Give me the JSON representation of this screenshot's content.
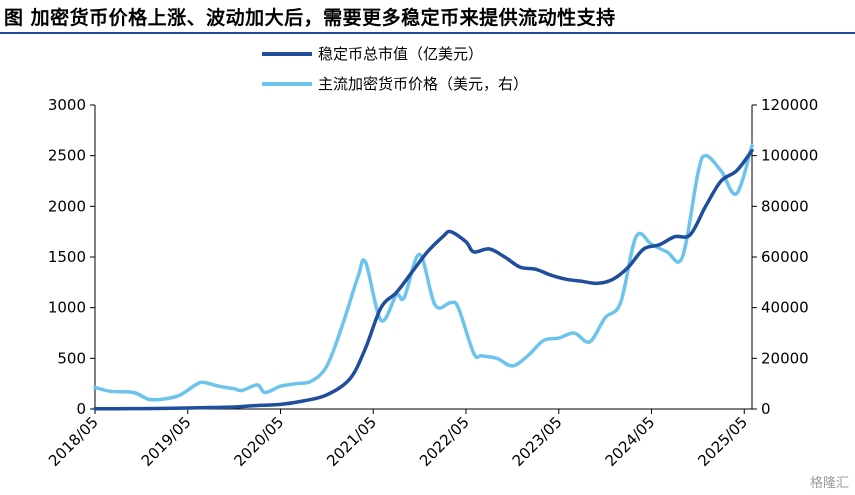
{
  "title": "图  加密货币价格上涨、波动加大后，需要更多稳定币来提供流动性支持",
  "watermark": "格隆汇",
  "chart_data": {
    "type": "line",
    "x_ticks": [
      "2018/05",
      "2019/05",
      "2020/05",
      "2021/05",
      "2022/05",
      "2023/05",
      "2024/05",
      "2025/05"
    ],
    "x_range": [
      "2018/05",
      "2025/06"
    ],
    "y_left": {
      "ticks": [
        0,
        500,
        1000,
        1500,
        2000,
        2500,
        3000
      ],
      "ylim": [
        0,
        3000
      ]
    },
    "y_right": {
      "ticks": [
        0,
        20000,
        40000,
        60000,
        80000,
        100000,
        120000
      ],
      "ylim": [
        0,
        120000
      ]
    },
    "grid": false,
    "legend_position": "top-center",
    "series": [
      {
        "name": "稳定币总市值（亿美元）",
        "axis": "left",
        "color": "#1f4e9c",
        "points": [
          [
            "2018/05",
            3
          ],
          [
            "2018/08",
            3
          ],
          [
            "2018/11",
            4
          ],
          [
            "2019/02",
            6
          ],
          [
            "2019/05",
            10
          ],
          [
            "2019/08",
            15
          ],
          [
            "2019/11",
            20
          ],
          [
            "2020/02",
            35
          ],
          [
            "2020/05",
            45
          ],
          [
            "2020/08",
            80
          ],
          [
            "2020/11",
            140
          ],
          [
            "2021/02",
            300
          ],
          [
            "2021/04",
            600
          ],
          [
            "2021/06",
            1000
          ],
          [
            "2021/08",
            1150
          ],
          [
            "2021/10",
            1350
          ],
          [
            "2021/12",
            1550
          ],
          [
            "2022/02",
            1700
          ],
          [
            "2022/03",
            1750
          ],
          [
            "2022/05",
            1650
          ],
          [
            "2022/06",
            1550
          ],
          [
            "2022/08",
            1580
          ],
          [
            "2022/10",
            1500
          ],
          [
            "2022/12",
            1400
          ],
          [
            "2023/02",
            1380
          ],
          [
            "2023/04",
            1320
          ],
          [
            "2023/06",
            1280
          ],
          [
            "2023/08",
            1260
          ],
          [
            "2023/10",
            1240
          ],
          [
            "2023/12",
            1280
          ],
          [
            "2024/02",
            1400
          ],
          [
            "2024/04",
            1580
          ],
          [
            "2024/06",
            1620
          ],
          [
            "2024/08",
            1700
          ],
          [
            "2024/10",
            1720
          ],
          [
            "2024/12",
            2000
          ],
          [
            "2025/02",
            2250
          ],
          [
            "2025/04",
            2350
          ],
          [
            "2025/06",
            2550
          ]
        ]
      },
      {
        "name": "主流加密货币价格（美元，右）",
        "axis": "right",
        "color": "#6cc3ec",
        "points": [
          [
            "2018/05",
            8500
          ],
          [
            "2018/07",
            7000
          ],
          [
            "2018/10",
            6500
          ],
          [
            "2018/12",
            3800
          ],
          [
            "2019/02",
            4000
          ],
          [
            "2019/04",
            5500
          ],
          [
            "2019/06",
            9500
          ],
          [
            "2019/07",
            10500
          ],
          [
            "2019/09",
            9000
          ],
          [
            "2019/11",
            8000
          ],
          [
            "2019/12",
            7300
          ],
          [
            "2020/02",
            9500
          ],
          [
            "2020/03",
            6500
          ],
          [
            "2020/05",
            9000
          ],
          [
            "2020/07",
            10000
          ],
          [
            "2020/09",
            11000
          ],
          [
            "2020/11",
            17000
          ],
          [
            "2021/01",
            33000
          ],
          [
            "2021/03",
            52000
          ],
          [
            "2021/04",
            58000
          ],
          [
            "2021/06",
            35000
          ],
          [
            "2021/08",
            45000
          ],
          [
            "2021/09",
            44000
          ],
          [
            "2021/11",
            61000
          ],
          [
            "2022/01",
            41000
          ],
          [
            "2022/03",
            42000
          ],
          [
            "2022/04",
            40000
          ],
          [
            "2022/06",
            22000
          ],
          [
            "2022/07",
            21000
          ],
          [
            "2022/09",
            20000
          ],
          [
            "2022/11",
            17000
          ],
          [
            "2023/01",
            21000
          ],
          [
            "2023/03",
            27000
          ],
          [
            "2023/05",
            28000
          ],
          [
            "2023/07",
            30000
          ],
          [
            "2023/09",
            26500
          ],
          [
            "2023/11",
            36000
          ],
          [
            "2024/01",
            42000
          ],
          [
            "2024/03",
            68000
          ],
          [
            "2024/05",
            65000
          ],
          [
            "2024/07",
            62000
          ],
          [
            "2024/09",
            60000
          ],
          [
            "2024/11",
            93000
          ],
          [
            "2024/12",
            100000
          ],
          [
            "2025/02",
            94000
          ],
          [
            "2025/04",
            85000
          ],
          [
            "2025/06",
            104000
          ]
        ]
      }
    ]
  }
}
